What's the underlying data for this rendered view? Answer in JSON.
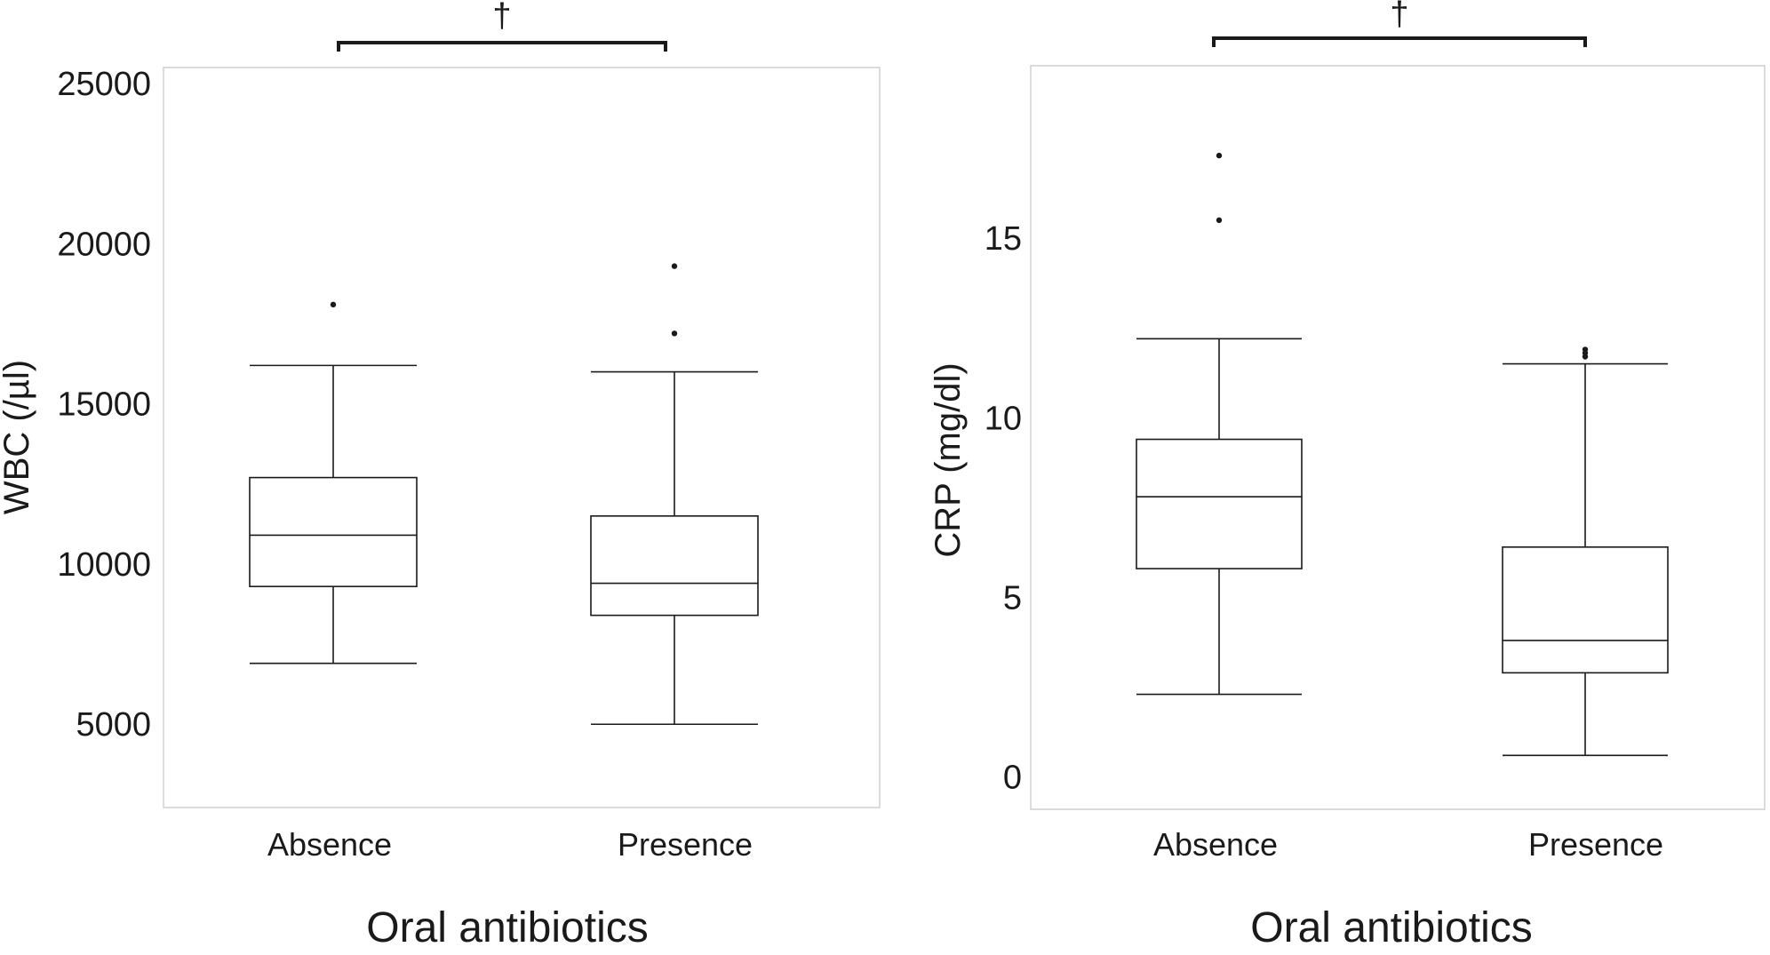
{
  "chart_data": [
    {
      "type": "box",
      "xlabel": "Oral antibiotics",
      "ylabel": "WBC (/µl)",
      "ylim": [
        2400,
        25500
      ],
      "yticks": [
        5000,
        10000,
        15000,
        20000,
        25000
      ],
      "tick_labels": [
        "5000",
        "10000",
        "15000",
        "20000",
        "25000"
      ],
      "categories": [
        "Absence",
        "Presence"
      ],
      "boxes": [
        {
          "category": "Absence",
          "whisker_low": 6900,
          "q1": 9300,
          "median": 10900,
          "q3": 12700,
          "whisker_high": 16200,
          "outliers": [
            18100
          ]
        },
        {
          "category": "Presence",
          "whisker_low": 5000,
          "q1": 8400,
          "median": 9400,
          "q3": 11500,
          "whisker_high": 16000,
          "outliers": [
            17200,
            19300
          ]
        }
      ],
      "significance": {
        "label": "†",
        "between": [
          "Absence",
          "Presence"
        ]
      },
      "grid": false
    },
    {
      "type": "box",
      "xlabel": "Oral antibiotics",
      "ylabel": "CRP (mg/dl)",
      "ylim": [
        -0.9,
        19.8
      ],
      "yticks": [
        0,
        5,
        10,
        15
      ],
      "tick_labels": [
        "0",
        "5",
        "10",
        "15"
      ],
      "categories": [
        "Absence",
        "Presence"
      ],
      "boxes": [
        {
          "category": "Absence",
          "whisker_low": 2.3,
          "q1": 5.8,
          "median": 7.8,
          "q3": 9.4,
          "whisker_high": 12.2,
          "outliers": [
            15.5,
            17.3
          ]
        },
        {
          "category": "Presence",
          "whisker_low": 0.6,
          "q1": 2.9,
          "median": 3.8,
          "q3": 6.4,
          "whisker_high": 11.5,
          "outliers": [
            11.7,
            11.8,
            11.9
          ]
        }
      ],
      "significance": {
        "label": "†",
        "between": [
          "Absence",
          "Presence"
        ]
      },
      "grid": false
    }
  ]
}
